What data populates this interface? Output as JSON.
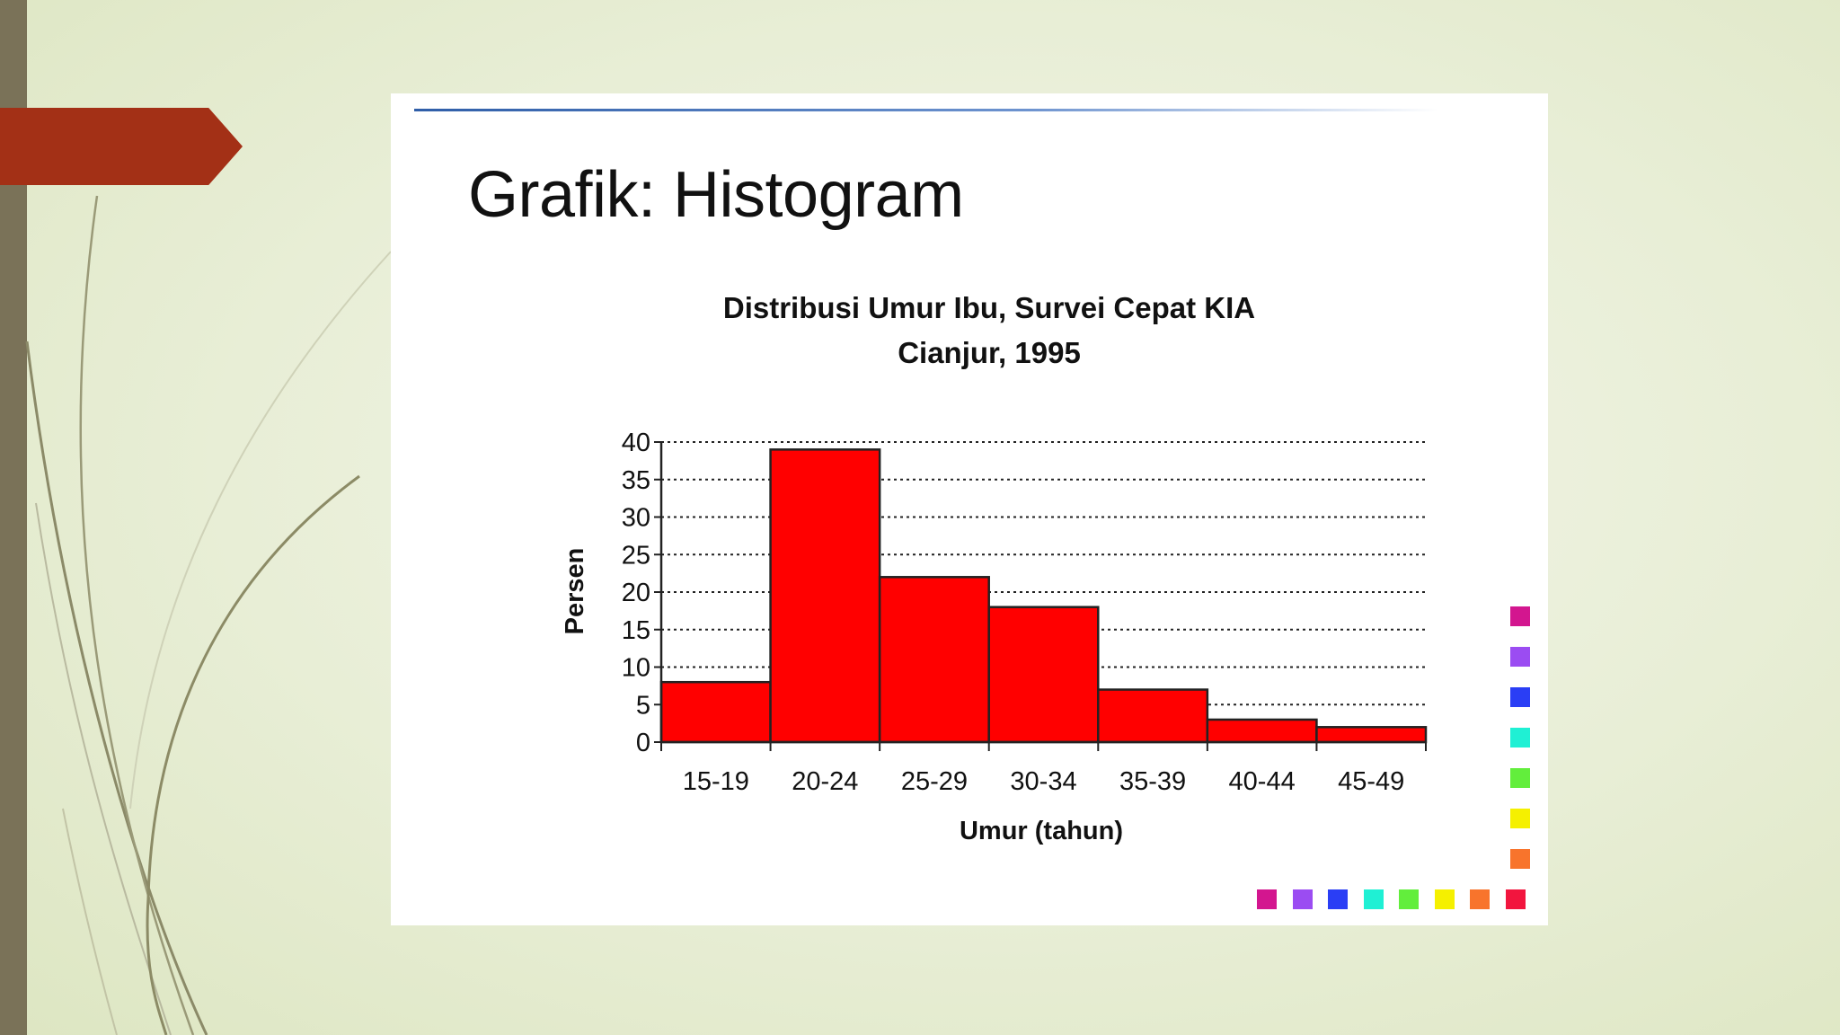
{
  "slide": {
    "title": "Grafik: Histogram"
  },
  "chart_data": {
    "type": "bar",
    "title": "Distribusi Umur Ibu, Survei Cepat KIA",
    "subtitle": "Cianjur, 1995",
    "xlabel": "Umur (tahun)",
    "ylabel": "Persen",
    "categories": [
      "15-19",
      "20-24",
      "25-29",
      "30-34",
      "35-39",
      "40-44",
      "45-49"
    ],
    "values": [
      8,
      39,
      22,
      18,
      7,
      3,
      2
    ],
    "ylim": [
      0,
      40
    ],
    "yticks": [
      0,
      5,
      10,
      15,
      20,
      25,
      30,
      35,
      40
    ],
    "grid": true,
    "bar_color": "#ff0000"
  },
  "decoration": {
    "accent_color": "#a33016",
    "square_colors": [
      "#d3168f",
      "#9b4cf2",
      "#2a3ef5",
      "#1ff0d4",
      "#62ee3c",
      "#f5f000",
      "#f8742c",
      "#f2153e"
    ]
  }
}
